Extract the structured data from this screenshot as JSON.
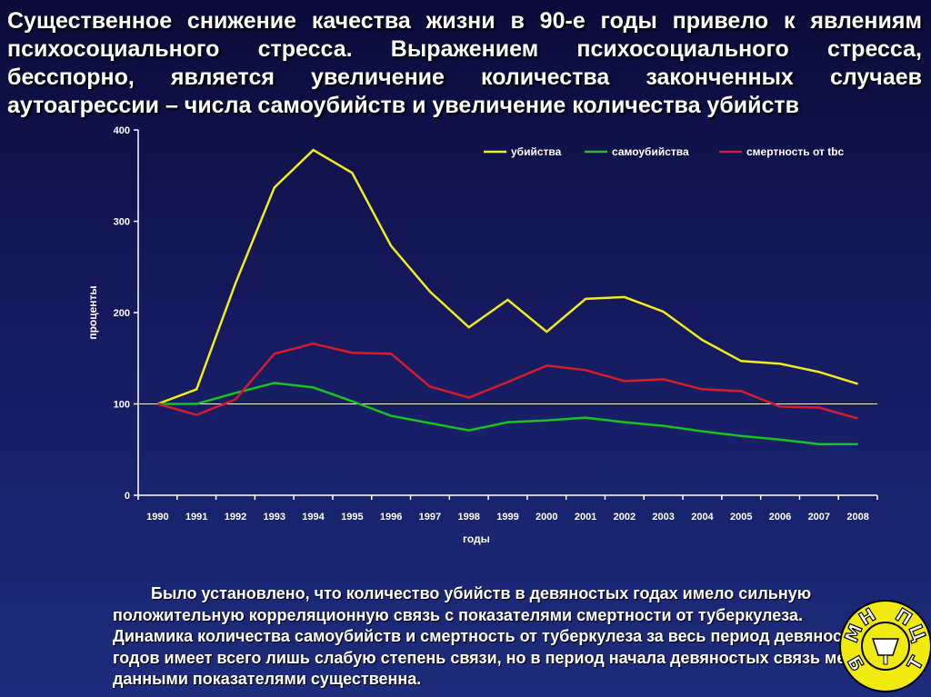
{
  "slide": {
    "title": "Существенное снижение качества жизни в 90-е годы привело к явлениям психосоциального стресса. Выражением психосоциального стресса, бесспорно, является увеличение количества законченных случаев аутоагрессии – числа самоубийств и увеличение количества убийств",
    "conclusion": "Было установлено, что количество убийств в девяностых годах имело сильную положительную корреляционную связь с показателями смертности от туберкулеза. Динамика количества самоубийств и смертность от туберкулеза за весь период девяностых годов имеет   всего лишь слабую степень связи, но в период начала девяностых связь между данными показателями существенна."
  },
  "logo": {
    "letters": [
      "М",
      "Н",
      "П",
      "Ц",
      "Б",
      "Т"
    ],
    "colors": {
      "ring": "#f0ea10",
      "text": "#ffffff",
      "outline": "#000000"
    }
  },
  "chart_data": {
    "type": "line",
    "xlabel": "годы",
    "ylabel": "проценты",
    "ylim": [
      0,
      400
    ],
    "yticks": [
      0,
      100,
      200,
      300,
      400
    ],
    "reference_line": 100,
    "legend_position": "top-right",
    "categories": [
      "1990",
      "1991",
      "1992",
      "1993",
      "1994",
      "1995",
      "1996",
      "1997",
      "1998",
      "1999",
      "2000",
      "2001",
      "2002",
      "2003",
      "2004",
      "2005",
      "2006",
      "2007",
      "2008"
    ],
    "series": [
      {
        "name": "убийства",
        "color": "#f2ec1a",
        "values": [
          100,
          116,
          232,
          337,
          378,
          353,
          273,
          223,
          184,
          214,
          179,
          215,
          217,
          201,
          170,
          147,
          144,
          135,
          122
        ]
      },
      {
        "name": "самоубийства",
        "color": "#19c21c",
        "values": [
          100,
          100,
          112,
          123,
          118,
          103,
          87,
          79,
          71,
          80,
          82,
          85,
          80,
          76,
          70,
          65,
          61,
          56,
          56
        ]
      },
      {
        "name": "смертность от tbc",
        "color": "#d81a2a",
        "values": [
          100,
          88,
          105,
          155,
          166,
          156,
          155,
          119,
          107,
          124,
          142,
          137,
          125,
          127,
          116,
          114,
          97,
          96,
          84
        ]
      }
    ]
  }
}
